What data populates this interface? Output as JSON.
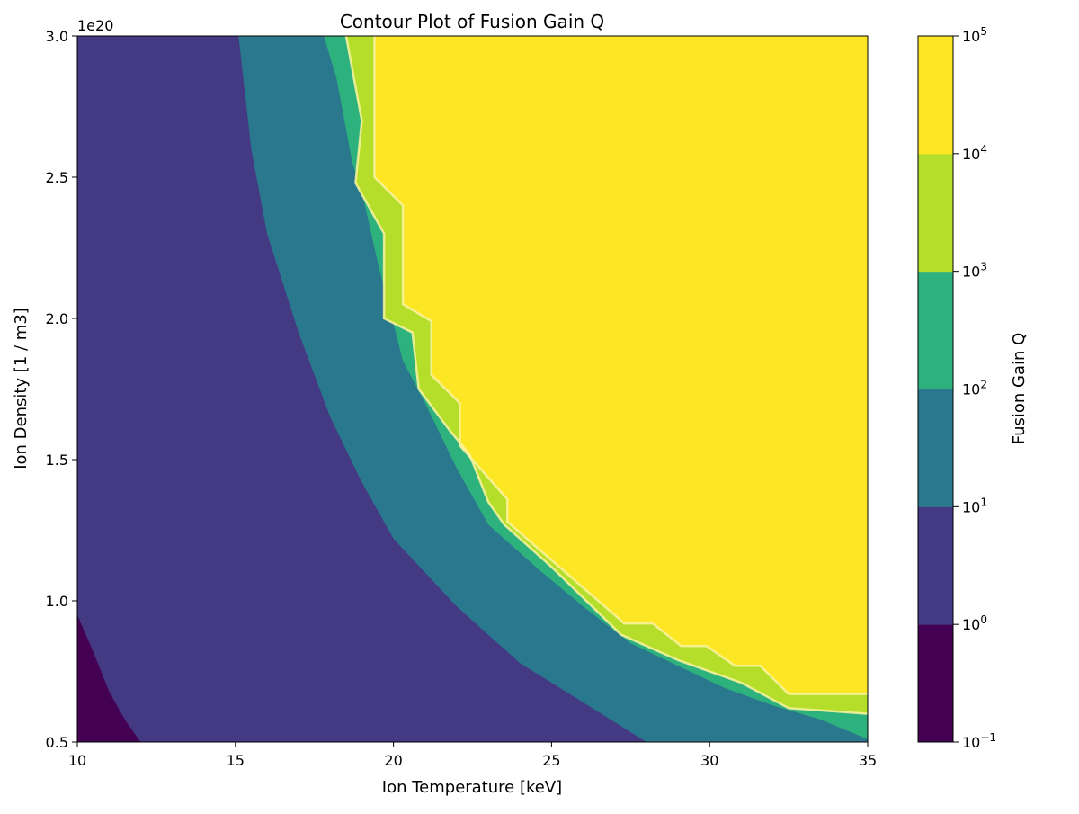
{
  "chart_data": {
    "type": "contour",
    "title": "Contour Plot of Fusion Gain Q",
    "xlabel": "Ion Temperature [keV]",
    "ylabel": "Ion Density [1 / m3]",
    "y_offset_label": "1e20",
    "xlim": [
      10,
      35
    ],
    "ylim": [
      0.5,
      3.0
    ],
    "x_ticks": [
      10,
      15,
      20,
      25,
      30,
      35
    ],
    "x_tick_labels": [
      "10",
      "15",
      "20",
      "25",
      "30",
      "35"
    ],
    "y_ticks": [
      0.5,
      1.0,
      1.5,
      2.0,
      2.5,
      3.0
    ],
    "y_tick_labels": [
      "0.5",
      "1.0",
      "1.5",
      "2.0",
      "2.5",
      "3.0"
    ],
    "colorbar": {
      "label": "Fusion Gain Q",
      "scale": "log",
      "levels": [
        0.1,
        1,
        10,
        100,
        1000,
        10000,
        100000
      ],
      "tick_labels": [
        {
          "base": "10",
          "exp": "−1"
        },
        {
          "base": "10",
          "exp": "0"
        },
        {
          "base": "10",
          "exp": "1"
        },
        {
          "base": "10",
          "exp": "2"
        },
        {
          "base": "10",
          "exp": "3"
        },
        {
          "base": "10",
          "exp": "4"
        },
        {
          "base": "10",
          "exp": "5"
        }
      ],
      "colors": [
        "#440154",
        "#443983",
        "#2a788e",
        "#2db27d",
        "#b5de2b",
        "#fde725"
      ]
    },
    "boundaries": [
      {
        "level": 1,
        "points": [
          [
            10,
            0.95
          ],
          [
            10.5,
            0.82
          ],
          [
            11,
            0.68
          ],
          [
            11.5,
            0.58
          ],
          [
            12,
            0.5
          ]
        ]
      },
      {
        "level": 10,
        "points": [
          [
            15.1,
            3.0
          ],
          [
            15.5,
            2.6
          ],
          [
            16,
            2.3
          ],
          [
            17,
            1.95
          ],
          [
            18,
            1.65
          ],
          [
            19,
            1.42
          ],
          [
            20,
            1.22
          ],
          [
            22,
            0.98
          ],
          [
            24,
            0.78
          ],
          [
            26,
            0.64
          ],
          [
            28,
            0.5
          ]
        ]
      },
      {
        "level": 100,
        "points": [
          [
            17.8,
            3.0
          ],
          [
            18.2,
            2.85
          ],
          [
            18.7,
            2.55
          ],
          [
            19.0,
            2.45
          ],
          [
            19.5,
            2.2
          ],
          [
            20.3,
            1.85
          ],
          [
            21.0,
            1.7
          ],
          [
            22.0,
            1.47
          ],
          [
            23.0,
            1.27
          ],
          [
            24.5,
            1.12
          ],
          [
            26,
            0.98
          ],
          [
            27.5,
            0.85
          ],
          [
            29,
            0.77
          ],
          [
            30.5,
            0.69
          ],
          [
            32,
            0.63
          ],
          [
            33.5,
            0.58
          ],
          [
            35,
            0.51
          ]
        ]
      },
      {
        "level": 1000,
        "points": [
          [
            18.5,
            3.0
          ],
          [
            19.0,
            2.7
          ],
          [
            18.8,
            2.48
          ],
          [
            19.7,
            2.3
          ],
          [
            19.7,
            2.0
          ],
          [
            20.6,
            1.95
          ],
          [
            20.8,
            1.75
          ],
          [
            21.8,
            1.6
          ],
          [
            22.4,
            1.52
          ],
          [
            23.0,
            1.35
          ],
          [
            23.5,
            1.27
          ],
          [
            25,
            1.12
          ],
          [
            27.2,
            0.88
          ],
          [
            29,
            0.79
          ],
          [
            31,
            0.71
          ],
          [
            32.5,
            0.62
          ],
          [
            35,
            0.6
          ]
        ]
      },
      {
        "level": 10000,
        "points": [
          [
            19.4,
            3.0
          ],
          [
            19.4,
            2.5
          ],
          [
            20.3,
            2.4
          ],
          [
            20.3,
            2.05
          ],
          [
            21.2,
            1.99
          ],
          [
            21.2,
            1.8
          ],
          [
            22.1,
            1.7
          ],
          [
            22.1,
            1.55
          ],
          [
            23.6,
            1.36
          ],
          [
            23.6,
            1.28
          ],
          [
            27.3,
            0.92
          ],
          [
            28.2,
            0.92
          ],
          [
            29.1,
            0.84
          ],
          [
            29.9,
            0.84
          ],
          [
            30.8,
            0.77
          ],
          [
            31.6,
            0.77
          ],
          [
            32.5,
            0.67
          ],
          [
            35,
            0.67
          ]
        ]
      }
    ]
  }
}
